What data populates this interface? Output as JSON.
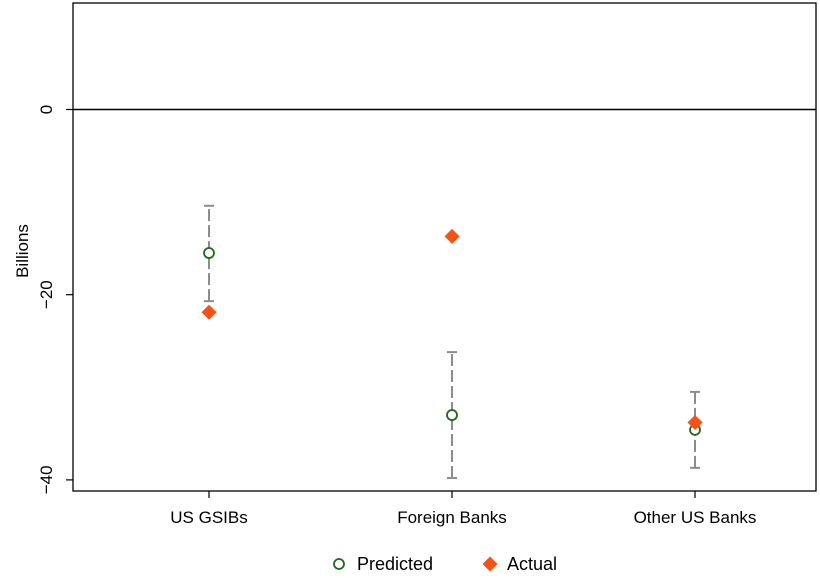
{
  "chart_data": {
    "type": "scatter",
    "title": "",
    "xlabel": "",
    "ylabel": "Billions",
    "ylim": [
      -41.2,
      11.5
    ],
    "yticks": [
      0,
      -20,
      -40
    ],
    "categories": [
      "US GSIBs",
      "Foreign Banks",
      "Other US Banks"
    ],
    "zero_line": true,
    "grid": false,
    "legend_position": "bottom",
    "series": [
      {
        "name": "Predicted",
        "marker": "hollow-circle",
        "color": "#1a6b1a",
        "values": [
          -15.5,
          -33.0,
          -34.6
        ],
        "ci_low": [
          -20.7,
          -39.8,
          -38.7
        ],
        "ci_high": [
          -10.4,
          -26.2,
          -30.5
        ]
      },
      {
        "name": "Actual",
        "marker": "diamond",
        "color": "#fb5012",
        "values": [
          -21.9,
          -13.7,
          -33.8
        ]
      }
    ],
    "error_bar_color": "#8c8c8c"
  }
}
